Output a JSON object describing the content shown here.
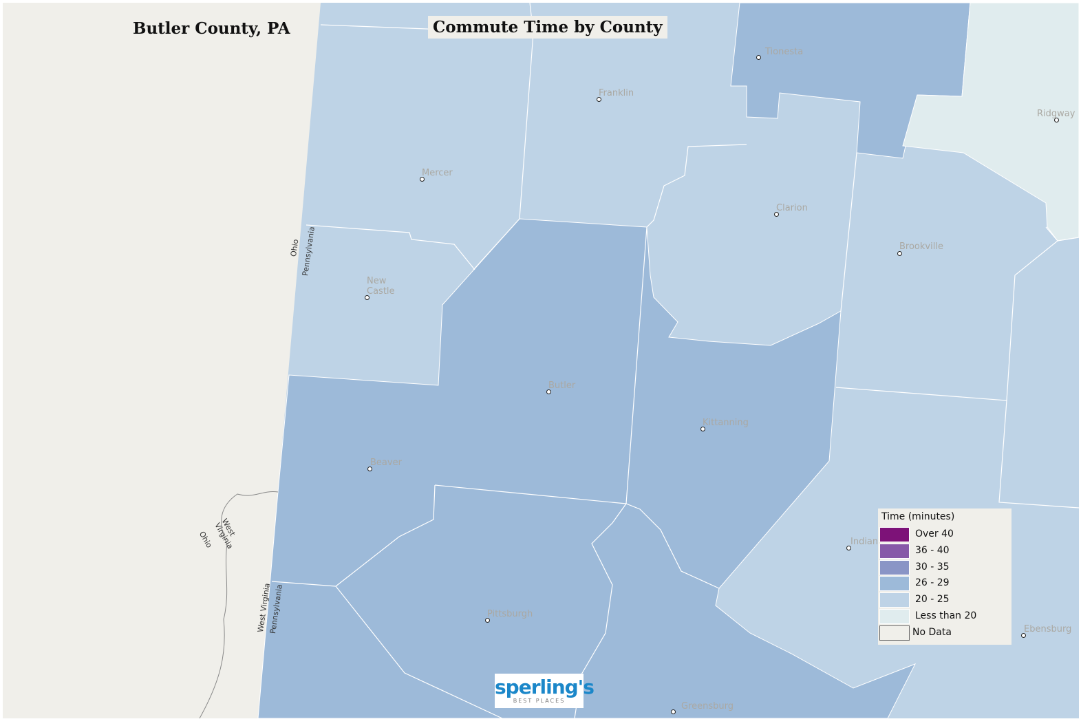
{
  "header": {
    "county": "Butler County, PA",
    "title": "Commute Time by County"
  },
  "colors": {
    "no_data": "#f0efea",
    "lt20": "#e0ecee",
    "c20_25": "#bed3e6",
    "c26_29": "#9dbad9",
    "c30_35": "#8a95c6",
    "c36_40": "#8759a8",
    "over40": "#7d1278"
  },
  "cities": [
    "Tionesta",
    "Franklin",
    "Mercer",
    "Clarion",
    "Ridgway",
    "Brookville",
    "New Castle",
    "Butler",
    "Kittanning",
    "Beaver",
    "Indiana",
    "Pittsburgh",
    "Greensburg",
    "Ebensburg"
  ],
  "state_labels": [
    "Ohio",
    "Pennsylvania",
    "West Virginia",
    "Ohio",
    "West Virginia",
    "Pennsylvania"
  ],
  "legend": {
    "title": "Time  (minutes)",
    "items": [
      {
        "label": "Over 40",
        "color": "#7d1278"
      },
      {
        "label": "36 - 40",
        "color": "#8759a8"
      },
      {
        "label": "30 - 35",
        "color": "#8a95c6"
      },
      {
        "label": "26 - 29",
        "color": "#9dbad9"
      },
      {
        "label": "20 - 25",
        "color": "#bed3e6"
      },
      {
        "label": "Less than 20",
        "color": "#e0ecee"
      },
      {
        "label": "No Data",
        "color": "#f0efea"
      }
    ]
  },
  "logo": {
    "name": "sperling's",
    "tagline": "BEST PLACES"
  }
}
